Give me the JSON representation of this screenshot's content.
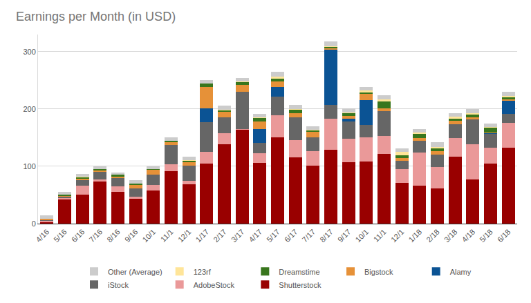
{
  "chart_data": {
    "type": "bar",
    "title": "Earnings per Month (in USD)",
    "stacked": true,
    "grid": true,
    "legend": "bottom",
    "categories": [
      "4/16",
      "5/16",
      "6/16",
      "7/16",
      "8/16",
      "9/16",
      "10/1",
      "11/1",
      "12/1",
      "1/17",
      "2/17",
      "3/17",
      "4/17",
      "5/17",
      "6/17",
      "7/17",
      "8/17",
      "9/17",
      "10/1",
      "11/1",
      "12/1",
      "1/18",
      "2/18",
      "3/18",
      "4/18",
      "5/18",
      "6/18"
    ],
    "ylim": [
      0,
      330
    ],
    "yticks": [
      0,
      100,
      200,
      300
    ],
    "series": [
      {
        "name": "Shutterstock",
        "color": "#990000",
        "values": [
          2,
          42,
          50,
          74,
          56,
          43,
          58,
          92,
          69,
          105,
          138,
          164,
          106,
          151,
          116,
          101,
          129,
          107,
          109,
          122,
          71,
          66,
          62,
          117,
          77,
          105,
          133
        ]
      },
      {
        "name": "AdobeStock",
        "color": "#ea9999",
        "values": [
          4,
          3,
          16,
          3,
          9,
          4,
          9,
          12,
          6,
          20,
          20,
          1,
          17,
          38,
          30,
          26,
          54,
          41,
          41,
          31,
          24,
          58,
          37,
          32,
          62,
          28,
          43
        ]
      },
      {
        "name": "iStock",
        "color": "#666666",
        "values": [
          1,
          2,
          10,
          13,
          14,
          14,
          18,
          33,
          26,
          52,
          28,
          65,
          18,
          33,
          39,
          23,
          24,
          30,
          22,
          43,
          15,
          20,
          22,
          24,
          43,
          24,
          15
        ]
      },
      {
        "name": "Alamy",
        "color": "#0b5394",
        "values": [
          0,
          0,
          0,
          0,
          0,
          0,
          0,
          0,
          0,
          24,
          0,
          0,
          24,
          16,
          0,
          0,
          96,
          5,
          44,
          0,
          0,
          0,
          0,
          0,
          0,
          1,
          23
        ]
      },
      {
        "name": "Bigstock",
        "color": "#e69138",
        "values": [
          1,
          2,
          3,
          3,
          4,
          7,
          9,
          5,
          6,
          37,
          9,
          12,
          13,
          10,
          8,
          10,
          3,
          5,
          10,
          5,
          5,
          5,
          5,
          7,
          4,
          1,
          3
        ]
      },
      {
        "name": "Dreamstime",
        "color": "#38761d",
        "values": [
          0,
          1,
          2,
          2,
          2,
          2,
          1,
          3,
          3,
          6,
          3,
          5,
          7,
          6,
          6,
          3,
          3,
          5,
          4,
          12,
          4,
          7,
          6,
          3,
          5,
          9,
          3
        ]
      },
      {
        "name": "123rf",
        "color": "#ffe599",
        "values": [
          0,
          0,
          1,
          0,
          0,
          0,
          0,
          0,
          1,
          0,
          1,
          1,
          1,
          2,
          1,
          1,
          1,
          1,
          2,
          4,
          6,
          3,
          2,
          4,
          2,
          1,
          3
        ]
      },
      {
        "name": "Other (Average)",
        "color": "#cccccc",
        "values": [
          6,
          5,
          5,
          5,
          4,
          6,
          5,
          5,
          6,
          7,
          7,
          6,
          6,
          9,
          7,
          6,
          8,
          7,
          7,
          7,
          6,
          6,
          8,
          6,
          7,
          6,
          7
        ]
      }
    ]
  }
}
